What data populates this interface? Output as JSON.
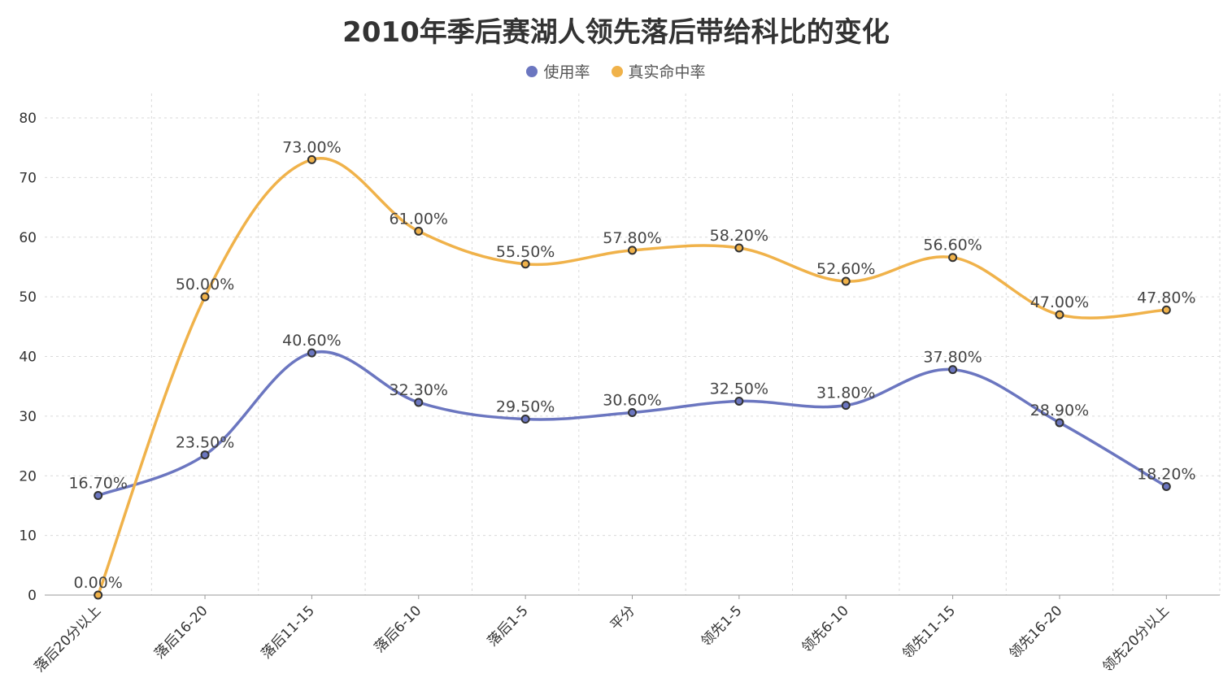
{
  "chart_data": {
    "type": "line",
    "title": "2010年季后赛湖人领先落后带给科比的变化",
    "categories": [
      "落后20分以上",
      "落后16-20",
      "落后11-15",
      "落后6-10",
      "落后1-5",
      "平分",
      "领先1-5",
      "领先6-10",
      "领先11-15",
      "领先16-20",
      "领先20分以上"
    ],
    "series": [
      {
        "name": "使用率",
        "color": "#6b76c0",
        "values": [
          16.7,
          23.5,
          40.6,
          32.3,
          29.5,
          30.6,
          32.5,
          31.8,
          37.8,
          28.9,
          18.2
        ],
        "labels": [
          "16.70%",
          "23.50%",
          "40.60%",
          "32.30%",
          "29.50%",
          "30.60%",
          "32.50%",
          "31.80%",
          "37.80%",
          "28.90%",
          "18.20%"
        ]
      },
      {
        "name": "真实命中率",
        "color": "#f0b24a",
        "values": [
          0,
          50,
          73,
          61,
          55.5,
          57.8,
          58.2,
          52.6,
          56.6,
          47,
          47.8
        ],
        "labels": [
          "0.00%",
          "50.00%",
          "73.00%",
          "61.00%",
          "55.50%",
          "57.80%",
          "58.20%",
          "52.60%",
          "56.60%",
          "47.00%",
          "47.80%"
        ]
      }
    ],
    "ylim": [
      0,
      80
    ],
    "yticks": [
      "0",
      "10",
      "20",
      "30",
      "40",
      "50",
      "60",
      "70",
      "80"
    ],
    "legend": "top-center",
    "grid": true
  }
}
